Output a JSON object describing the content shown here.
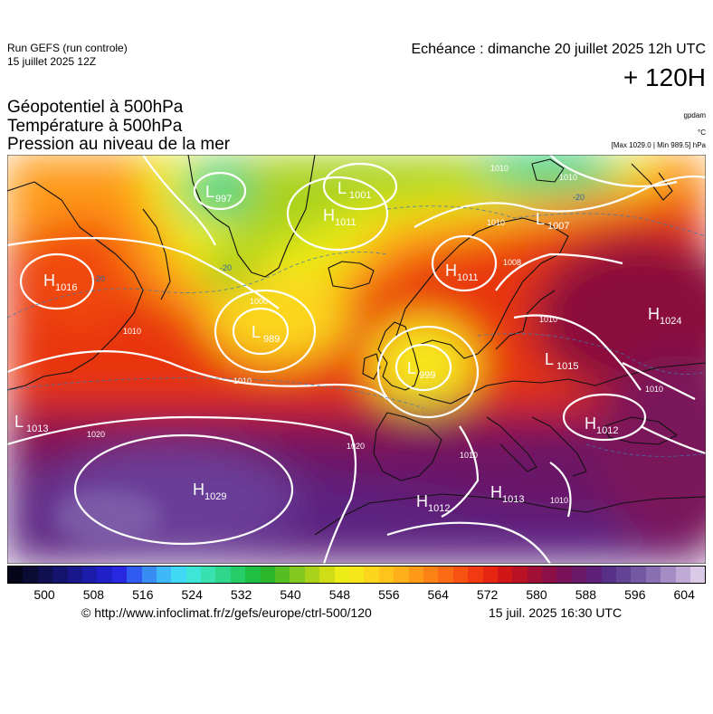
{
  "header": {
    "run_name": "Run GEFS (run controle)",
    "run_date": "15 juillet 2025 12Z",
    "echeance": "Echéance : dimanche 20 juillet 2025 12h UTC",
    "lead_time": "+ 120H",
    "title_1": "Géopotentiel à 500hPa",
    "title_2": "Température à 500hPa",
    "title_3": "Pression au niveau de la mer",
    "unit_geopot": "gpdam",
    "unit_temp": "°C",
    "minmax": "[Max 1029.0 | Min 989.5] hPa"
  },
  "map": {
    "pressure_centers": [
      {
        "type": "L",
        "value": "997"
      },
      {
        "type": "L",
        "value": "1001"
      },
      {
        "type": "H",
        "value": "1011"
      },
      {
        "type": "L",
        "value": "1007"
      },
      {
        "type": "H",
        "value": "1011"
      },
      {
        "type": "H",
        "value": "1016"
      },
      {
        "type": "L",
        "value": "989"
      },
      {
        "type": "L",
        "value": "999"
      },
      {
        "type": "H",
        "value": "1024"
      },
      {
        "type": "L",
        "value": "1015"
      },
      {
        "type": "L",
        "value": "1013"
      },
      {
        "type": "H",
        "value": "1012"
      },
      {
        "type": "H",
        "value": "1029"
      },
      {
        "type": "H",
        "value": "1012"
      },
      {
        "type": "H",
        "value": "1013"
      }
    ],
    "isobar_labels": [
      "1010",
      "1010",
      "1010",
      "1008",
      "1010",
      "1000",
      "1010",
      "1020",
      "1020",
      "1010",
      "1010",
      "1010",
      "1010"
    ],
    "temperature_labels": [
      "-20",
      "-20",
      "-20"
    ]
  },
  "colorbar": {
    "colors": [
      "#06061a",
      "#0b0b33",
      "#101050",
      "#14146e",
      "#18188c",
      "#1c1caa",
      "#2020c8",
      "#2828e0",
      "#2f5bf0",
      "#3a8cf5",
      "#3fb8f8",
      "#40d8f5",
      "#3ee6d8",
      "#39e0b0",
      "#2fd68c",
      "#26cc66",
      "#1fbf44",
      "#2ab52a",
      "#55be23",
      "#82c81e",
      "#aad21a",
      "#cfdc16",
      "#ecec18",
      "#f7e61a",
      "#fcd61c",
      "#fec41c",
      "#feb01a",
      "#fe9a18",
      "#fd8216",
      "#fb6a14",
      "#f75212",
      "#f13a11",
      "#e62610",
      "#d01616",
      "#b81224",
      "#a00f35",
      "#8c0f48",
      "#7a125a",
      "#6a1868",
      "#5e2077",
      "#583088",
      "#624394",
      "#7458a2",
      "#8a70b2",
      "#a48cc4",
      "#bfaad6",
      "#dacae8"
    ],
    "tick_labels": [
      "500",
      "508",
      "516",
      "524",
      "532",
      "540",
      "548",
      "556",
      "564",
      "572",
      "580",
      "588",
      "596",
      "604"
    ]
  },
  "footer": {
    "credit": "© http://www.infoclimat.fr/z/gefs/europe/ctrl-500/120",
    "timestamp": "15 juil. 2025 16:30 UTC"
  }
}
